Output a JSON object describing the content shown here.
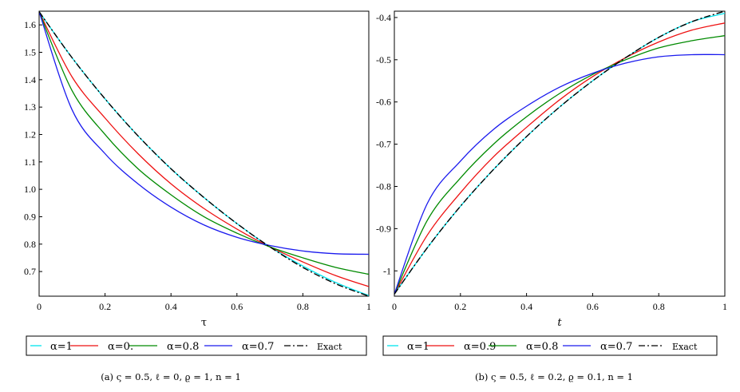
{
  "chart_data": [
    {
      "type": "line",
      "xlabel": "τ",
      "ylabel": "",
      "xlim": [
        0,
        1
      ],
      "ylim": [
        0.61,
        1.65
      ],
      "xticks": [
        "0",
        "0.2",
        "0.4",
        "0.6",
        "0.8",
        "1"
      ],
      "yticks": [
        "0.7",
        "0.8",
        "0.9",
        "1.0",
        "1.1",
        "1.2",
        "1.3",
        "1.4",
        "1.5",
        "1.6"
      ],
      "legend": [
        "α=1",
        "α=0.",
        "α=0.8",
        "α=0.7",
        "Exact"
      ],
      "caption": "(a) ς = 0.5, ℓ = 0, ϱ = 1, n = 1",
      "x": [
        0,
        0.1,
        0.2,
        0.3,
        0.4,
        0.5,
        0.6,
        0.7,
        0.8,
        0.9,
        1.0
      ],
      "series": [
        {
          "name": "α=1",
          "color": "#00e5ee",
          "style": "solid",
          "values": [
            1.648,
            1.48,
            1.33,
            1.195,
            1.075,
            0.97,
            0.875,
            0.79,
            0.72,
            0.66,
            0.612
          ]
        },
        {
          "name": "α=0.",
          "color": "#ee1111",
          "style": "solid",
          "values": [
            1.648,
            1.41,
            1.26,
            1.13,
            1.02,
            0.93,
            0.855,
            0.79,
            0.735,
            0.685,
            0.645
          ]
        },
        {
          "name": "α=0.8",
          "color": "#008a00",
          "style": "solid",
          "values": [
            1.648,
            1.36,
            1.2,
            1.075,
            0.98,
            0.9,
            0.84,
            0.79,
            0.75,
            0.715,
            0.69
          ]
        },
        {
          "name": "α=0.7",
          "color": "#1a1aee",
          "style": "solid",
          "values": [
            1.648,
            1.29,
            1.13,
            1.02,
            0.935,
            0.87,
            0.825,
            0.795,
            0.775,
            0.765,
            0.763
          ]
        },
        {
          "name": "Exact",
          "color": "#000000",
          "style": "dashdot",
          "values": [
            1.648,
            1.48,
            1.33,
            1.195,
            1.075,
            0.97,
            0.875,
            0.79,
            0.715,
            0.655,
            0.61
          ]
        }
      ]
    },
    {
      "type": "line",
      "xlabel": "t",
      "ylabel": "",
      "xlim": [
        0,
        1
      ],
      "ylim": [
        -1.06,
        -0.385
      ],
      "xticks": [
        "0",
        "0.2",
        "0.4",
        "0.6",
        "0.8",
        "1"
      ],
      "yticks": [
        "-1",
        "-0.9",
        "-0.8",
        "-0.7",
        "-0.6",
        "-0.5",
        "-0.4"
      ],
      "legend": [
        "α=1",
        "α=0.9",
        "α=0.8",
        "α=0.7",
        "Exact"
      ],
      "caption": "(b) ς = 0.5, ℓ = 0.2, ϱ = 0.1, n = 1",
      "x": [
        0,
        0.1,
        0.2,
        0.3,
        0.4,
        0.5,
        0.6,
        0.7,
        0.8,
        0.9,
        1.0
      ],
      "series": [
        {
          "name": "α=1",
          "color": "#00e5ee",
          "style": "solid",
          "values": [
            -1.055,
            -0.945,
            -0.847,
            -0.76,
            -0.682,
            -0.612,
            -0.55,
            -0.495,
            -0.447,
            -0.41,
            -0.39
          ]
        },
        {
          "name": "α=0.9",
          "color": "#ee1111",
          "style": "solid",
          "values": [
            -1.055,
            -0.915,
            -0.815,
            -0.73,
            -0.66,
            -0.595,
            -0.54,
            -0.495,
            -0.458,
            -0.43,
            -0.413
          ]
        },
        {
          "name": "α=0.8",
          "color": "#008a00",
          "style": "solid",
          "values": [
            -1.055,
            -0.88,
            -0.78,
            -0.7,
            -0.635,
            -0.58,
            -0.535,
            -0.5,
            -0.472,
            -0.455,
            -0.443
          ]
        },
        {
          "name": "α=0.7",
          "color": "#1a1aee",
          "style": "solid",
          "values": [
            -1.055,
            -0.84,
            -0.74,
            -0.665,
            -0.61,
            -0.565,
            -0.532,
            -0.508,
            -0.493,
            -0.488,
            -0.488
          ]
        },
        {
          "name": "Exact",
          "color": "#000000",
          "style": "dashdot",
          "values": [
            -1.055,
            -0.945,
            -0.847,
            -0.76,
            -0.682,
            -0.612,
            -0.55,
            -0.495,
            -0.447,
            -0.41,
            -0.385
          ]
        }
      ]
    }
  ]
}
